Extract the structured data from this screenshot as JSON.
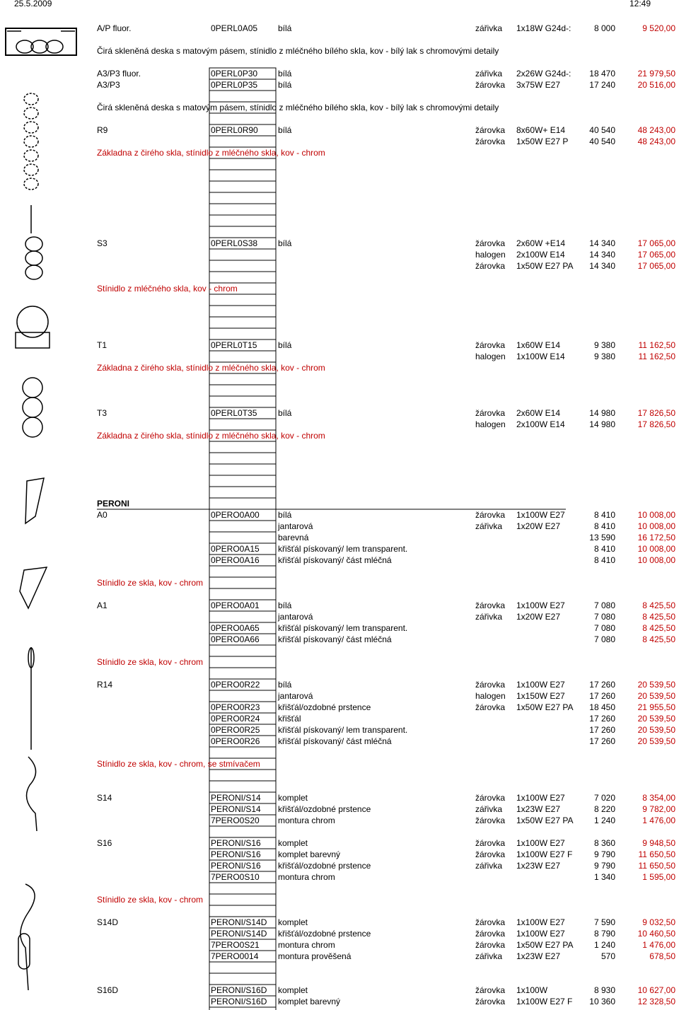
{
  "header": {
    "date": "25.5.2009",
    "time": "12:49"
  },
  "rows": [
    {
      "model": "A/P  fluor.",
      "code": "0PERL0A05",
      "finish": "bílá",
      "source": "zářivka",
      "spec": "1x18W G24d-:",
      "price": "8 000",
      "price_vat": "9 520,00"
    },
    {
      "text": "Čirá skleněná deska s matovým pásem, stínidlo z mléčného bílého skla, kov - bílý lak s chromovými detaily"
    },
    {
      "model": "A3/P3  fluor.",
      "code": "0PERL0P30",
      "finish": "bílá",
      "source": "zářivka",
      "spec": "2x26W G24d-:",
      "price": "18 470",
      "price_vat": "21 979,50"
    },
    {
      "model": "A3/P3",
      "code": "0PERL0P35",
      "finish": "bílá",
      "source": "žárovka",
      "spec": "3x75W E27",
      "price": "17 240",
      "price_vat": "20 516,00"
    },
    {
      "text": "Čirá skleněná deska s matovým pásem, stínidlo z mléčného bílého skla, kov - bílý lak s chromovými detaily"
    },
    {
      "model": "R9",
      "code": "0PERL0R90",
      "finish": "bílá",
      "source": "žárovka",
      "spec": "8x60W+ E14",
      "price": "40 540",
      "price_vat": "48 243,00"
    },
    {
      "source": "žárovka",
      "spec": "1x50W  E27 P",
      "price": "40 540",
      "price_vat": "48 243,00"
    },
    {
      "note": "Základna z čirého skla, stínidlo z mléčného skla, kov - chrom"
    },
    {
      "model": "S3",
      "code": "0PERL0S38",
      "finish": "bílá",
      "source": "žárovka",
      "spec": "2x60W  +E14",
      "price": "14 340",
      "price_vat": "17 065,00"
    },
    {
      "source": "halogen",
      "spec": "2x100W E14",
      "price": "14 340",
      "price_vat": "17 065,00"
    },
    {
      "source": "žárovka",
      "spec": "1x50W E27 PA",
      "price": "14 340",
      "price_vat": "17 065,00"
    },
    {
      "note": "Stínidlo z mléčného skla, kov - chrom"
    },
    {
      "model": "T1",
      "code": "0PERL0T15",
      "finish": "bílá",
      "source": "žárovka",
      "spec": "1x60W E14",
      "price": "9 380",
      "price_vat": "11 162,50"
    },
    {
      "source": "halogen",
      "spec": "1x100W E14",
      "price": "9 380",
      "price_vat": "11 162,50"
    },
    {
      "note": "Základna z čirého skla, stínidlo z mléčného skla, kov - chrom"
    },
    {
      "model": "T3",
      "code": "0PERL0T35",
      "finish": "bílá",
      "source": "žárovka",
      "spec": "2x60W E14",
      "price": "14 980",
      "price_vat": "17 826,50"
    },
    {
      "source": "halogen",
      "spec": "2x100W E14",
      "price": "14 980",
      "price_vat": "17 826,50"
    },
    {
      "note": "Základna z čirého skla, stínidlo z mléčného skla, kov - chrom"
    },
    {
      "section": "PERONI"
    },
    {
      "model": "A0",
      "code": "0PERO0A00",
      "finish": "bílá",
      "source": "žárovka",
      "spec": "1x100W E27",
      "price": "8 410",
      "price_vat": "10 008,00"
    },
    {
      "finish": "jantarová",
      "source": "zářivka",
      "spec": "1x20W E27",
      "price": "8 410",
      "price_vat": "10 008,00"
    },
    {
      "finish": "barevná",
      "price": "13 590",
      "price_vat": "16 172,50"
    },
    {
      "code": "0PERO0A15",
      "finish": "křišťál pískovaný/ lem  transparent.",
      "price": "8 410",
      "price_vat": "10 008,00"
    },
    {
      "code": "0PERO0A16",
      "finish": "křišťál pískovaný/ část mléčná",
      "price": "8 410",
      "price_vat": "10 008,00"
    },
    {
      "note": "Stínidlo ze skla, kov - chrom"
    },
    {
      "model": "A1",
      "code": "0PERO0A01",
      "finish": "bílá",
      "source": "žárovka",
      "spec": "1x100W E27",
      "price": "7 080",
      "price_vat": "8 425,50"
    },
    {
      "finish": "jantarová",
      "source": "zářivka",
      "spec": "1x20W E27",
      "price": "7 080",
      "price_vat": "8 425,50"
    },
    {
      "code": "0PERO0A65",
      "finish": "křišťál pískovaný/ lem  transparent.",
      "price": "7 080",
      "price_vat": "8 425,50"
    },
    {
      "code": "0PERO0A66",
      "finish": "křišťál pískovaný/ část mléčná",
      "price": "7 080",
      "price_vat": "8 425,50"
    },
    {
      "note": "Stínidlo ze skla, kov - chrom"
    },
    {
      "model": "R14",
      "code": "0PERO0R22",
      "finish": "bílá",
      "source": "žárovka",
      "spec": "1x100W E27",
      "price": "17 260",
      "price_vat": "20 539,50"
    },
    {
      "finish": "jantarová",
      "source": "halogen",
      "spec": "1x150W E27",
      "price": "17 260",
      "price_vat": "20 539,50"
    },
    {
      "code": "0PERO0R23",
      "finish": "křišťál/ozdobné prstence",
      "source": "žárovka",
      "spec": "1x50W E27 PA",
      "price": "18 450",
      "price_vat": "21 955,50"
    },
    {
      "code": "0PERO0R24",
      "finish": "křišťál",
      "price": "17 260",
      "price_vat": "20 539,50"
    },
    {
      "code": "0PERO0R25",
      "finish": "křišťál pískovaný/ lem  transparent.",
      "price": "17 260",
      "price_vat": "20 539,50"
    },
    {
      "code": "0PERO0R26",
      "finish": "křišťál pískovaný/ část mléčná",
      "price": "17 260",
      "price_vat": "20 539,50"
    },
    {
      "note": "Stínidlo ze skla, kov - chrom, se stmívačem"
    },
    {
      "model": "S14",
      "code": "PERONI/S14",
      "finish": "komplet",
      "source": "žárovka",
      "spec": "1x100W E27",
      "price": "7 020",
      "price_vat": "8 354,00"
    },
    {
      "code": "PERONI/S14",
      "finish": "křišťál/ozdobné prstence",
      "source": "zářivka",
      "spec": "1x23W E27",
      "price": "8 220",
      "price_vat": "9 782,00"
    },
    {
      "code": "7PERO0S20",
      "finish": "montura chrom",
      "source": "žárovka",
      "spec": "1x50W E27 PA",
      "price": "1 240",
      "price_vat": "1 476,00"
    },
    {
      "model": "S16",
      "code": "PERONI/S16",
      "finish": "komplet",
      "source": "žárovka",
      "spec": "1x100W E27",
      "price": "8 360",
      "price_vat": "9 948,50"
    },
    {
      "code": "PERONI/S16",
      "finish": "komplet  barevný",
      "source": "žárovka",
      "spec": "1x100W E27 F",
      "price": "9 790",
      "price_vat": "11 650,50"
    },
    {
      "code": "PERONI/S16",
      "finish": "křišťál/ozdobné prstence",
      "source": "zářivka",
      "spec": "1x23W E27",
      "price": "9 790",
      "price_vat": "11 650,50"
    },
    {
      "code": "7PERO0S10",
      "finish": "montura chrom",
      "price": "1 340",
      "price_vat": "1 595,00"
    },
    {
      "note": "Stínidlo ze skla, kov - chrom"
    },
    {
      "model": "S14D",
      "code": "PERONI/S14D",
      "finish": "komplet",
      "source": "žárovka",
      "spec": "1x100W E27",
      "price": "7 590",
      "price_vat": "9 032,50"
    },
    {
      "code": "PERONI/S14D",
      "finish": "křišťál/ozdobné prstence",
      "source": "žárovka",
      "spec": "1x100W E27",
      "price": "8 790",
      "price_vat": "10 460,50"
    },
    {
      "code": "7PERO0S21",
      "finish": "montura chrom",
      "source": "žárovka",
      "spec": "1x50W E27 PA",
      "price": "1 240",
      "price_vat": "1 476,00"
    },
    {
      "code": "7PERO0014",
      "finish": "montura prověšená",
      "source": "zářivka",
      "spec": "1x23W E27",
      "price": "570",
      "price_vat": "678,50"
    },
    {
      "model": "S16D",
      "code": "PERONI/S16D",
      "finish": "komplet",
      "source": "žárovka",
      "spec": "1x100W",
      "price": "8 930",
      "price_vat": "10 627,00"
    },
    {
      "code": "PERONI/S16D",
      "finish": "komplet  barevný",
      "source": "žárovka",
      "spec": "1x100W E27 F",
      "price": "10 360",
      "price_vat": "12 328,50"
    }
  ]
}
